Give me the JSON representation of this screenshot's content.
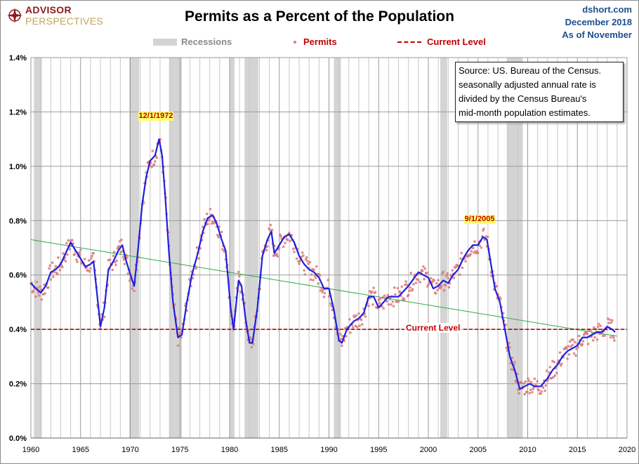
{
  "header": {
    "logo_line1": "ADVISOR",
    "logo_line2": "PERSPECTIVES",
    "title": "Permits as a Percent of the Population",
    "site": "dshort.com",
    "date": "December 2018",
    "as_of": "As of November"
  },
  "legend": {
    "recessions": "Recessions",
    "permits": "Permits",
    "current": "Current Level"
  },
  "source_note": [
    "Source: US. Bureau of the Census.",
    "seasonally adjusted annual rate is",
    "divided by the Census Bureau's",
    "mid-month  population estimates."
  ],
  "colors": {
    "line": "#1f1fe0",
    "scatter": "#d9797a",
    "current": "#c00000",
    "trend": "#2eaa4a",
    "recession": "#d4d4d4"
  },
  "chart_data": {
    "type": "line",
    "title": "Permits as a Percent of the Population",
    "xlim": [
      1960,
      2020
    ],
    "ylim": [
      0,
      1.4
    ],
    "x_ticks": [
      "1960",
      "1965",
      "1970",
      "1975",
      "1980",
      "1985",
      "1990",
      "1995",
      "2000",
      "2005",
      "2010",
      "2015",
      "2020"
    ],
    "y_ticks": [
      "0.0%",
      "0.2%",
      "0.4%",
      "0.6%",
      "0.8%",
      "1.0%",
      "1.2%",
      "1.4%"
    ],
    "y_tick_values": [
      0,
      0.2,
      0.4,
      0.6,
      0.8,
      1.0,
      1.2,
      1.4
    ],
    "grid": true,
    "recessions": [
      [
        1960.3,
        1961.1
      ],
      [
        1969.9,
        1970.9
      ],
      [
        1973.9,
        1975.2
      ],
      [
        1980.0,
        1980.5
      ],
      [
        1981.5,
        1982.9
      ],
      [
        1990.5,
        1991.2
      ],
      [
        2001.2,
        2001.9
      ],
      [
        2007.9,
        2009.5
      ]
    ],
    "current_level": 0.4,
    "current_label": "Current Level",
    "trend": {
      "x": [
        1960,
        2019
      ],
      "y": [
        0.73,
        0.375
      ]
    },
    "annotations": [
      {
        "label": "12/1/1972",
        "x": 1972.9,
        "y": 1.18
      },
      {
        "label": "9/1/2005",
        "x": 2005.7,
        "y": 0.8
      }
    ],
    "moving_average": [
      [
        1960.0,
        0.57
      ],
      [
        1960.5,
        0.55
      ],
      [
        1961.0,
        0.535
      ],
      [
        1961.5,
        0.56
      ],
      [
        1962,
        0.61
      ],
      [
        1962.5,
        0.62
      ],
      [
        1963,
        0.64
      ],
      [
        1963.5,
        0.68
      ],
      [
        1964,
        0.72
      ],
      [
        1964.5,
        0.69
      ],
      [
        1965,
        0.66
      ],
      [
        1965.5,
        0.63
      ],
      [
        1966,
        0.64
      ],
      [
        1966.3,
        0.65
      ],
      [
        1966.6,
        0.55
      ],
      [
        1967,
        0.41
      ],
      [
        1967.4,
        0.48
      ],
      [
        1967.8,
        0.62
      ],
      [
        1968.3,
        0.65
      ],
      [
        1968.8,
        0.69
      ],
      [
        1969.2,
        0.71
      ],
      [
        1969.6,
        0.65
      ],
      [
        1970.2,
        0.58
      ],
      [
        1970.4,
        0.56
      ],
      [
        1970.8,
        0.7
      ],
      [
        1971.2,
        0.86
      ],
      [
        1971.6,
        0.96
      ],
      [
        1972,
        1.02
      ],
      [
        1972.5,
        1.04
      ],
      [
        1972.9,
        1.1
      ],
      [
        1973.2,
        1.04
      ],
      [
        1973.5,
        0.9
      ],
      [
        1973.9,
        0.68
      ],
      [
        1974.3,
        0.5
      ],
      [
        1974.8,
        0.37
      ],
      [
        1975.2,
        0.38
      ],
      [
        1975.7,
        0.5
      ],
      [
        1976.2,
        0.6
      ],
      [
        1976.8,
        0.68
      ],
      [
        1977.3,
        0.76
      ],
      [
        1977.8,
        0.81
      ],
      [
        1978.3,
        0.82
      ],
      [
        1978.7,
        0.79
      ],
      [
        1979.2,
        0.73
      ],
      [
        1979.6,
        0.69
      ],
      [
        1980.1,
        0.48
      ],
      [
        1980.4,
        0.4
      ],
      [
        1980.9,
        0.58
      ],
      [
        1981.2,
        0.56
      ],
      [
        1981.6,
        0.44
      ],
      [
        1982.0,
        0.35
      ],
      [
        1982.3,
        0.35
      ],
      [
        1982.8,
        0.48
      ],
      [
        1983.3,
        0.67
      ],
      [
        1983.8,
        0.73
      ],
      [
        1984.2,
        0.76
      ],
      [
        1984.5,
        0.68
      ],
      [
        1985,
        0.71
      ],
      [
        1985.5,
        0.74
      ],
      [
        1986,
        0.75
      ],
      [
        1986.5,
        0.72
      ],
      [
        1987,
        0.67
      ],
      [
        1987.5,
        0.64
      ],
      [
        1988,
        0.62
      ],
      [
        1988.5,
        0.61
      ],
      [
        1989,
        0.59
      ],
      [
        1989.5,
        0.55
      ],
      [
        1990,
        0.55
      ],
      [
        1990.5,
        0.47
      ],
      [
        1991,
        0.36
      ],
      [
        1991.3,
        0.35
      ],
      [
        1991.8,
        0.4
      ],
      [
        1992.5,
        0.43
      ],
      [
        1993,
        0.44
      ],
      [
        1993.5,
        0.46
      ],
      [
        1994,
        0.52
      ],
      [
        1994.5,
        0.52
      ],
      [
        1995,
        0.48
      ],
      [
        1995.5,
        0.5
      ],
      [
        1996,
        0.52
      ],
      [
        1997,
        0.52
      ],
      [
        1998,
        0.56
      ],
      [
        1999,
        0.61
      ],
      [
        1999.5,
        0.6
      ],
      [
        2000,
        0.59
      ],
      [
        2000.5,
        0.55
      ],
      [
        2001,
        0.56
      ],
      [
        2001.5,
        0.58
      ],
      [
        2002,
        0.57
      ],
      [
        2002.5,
        0.6
      ],
      [
        2003,
        0.62
      ],
      [
        2003.5,
        0.66
      ],
      [
        2004,
        0.69
      ],
      [
        2004.5,
        0.71
      ],
      [
        2005,
        0.71
      ],
      [
        2005.5,
        0.74
      ],
      [
        2005.9,
        0.73
      ],
      [
        2006.3,
        0.64
      ],
      [
        2006.7,
        0.55
      ],
      [
        2007.2,
        0.5
      ],
      [
        2007.7,
        0.4
      ],
      [
        2008.2,
        0.3
      ],
      [
        2008.7,
        0.25
      ],
      [
        2009.2,
        0.18
      ],
      [
        2009.7,
        0.19
      ],
      [
        2010.2,
        0.2
      ],
      [
        2010.7,
        0.19
      ],
      [
        2011.3,
        0.19
      ],
      [
        2012,
        0.22
      ],
      [
        2012.5,
        0.25
      ],
      [
        2013,
        0.27
      ],
      [
        2013.5,
        0.3
      ],
      [
        2014,
        0.32
      ],
      [
        2014.5,
        0.33
      ],
      [
        2015,
        0.34
      ],
      [
        2015.5,
        0.37
      ],
      [
        2016,
        0.37
      ],
      [
        2016.5,
        0.38
      ],
      [
        2017,
        0.39
      ],
      [
        2017.5,
        0.39
      ],
      [
        2018,
        0.41
      ],
      [
        2018.5,
        0.4
      ],
      [
        2018.8,
        0.39
      ]
    ]
  }
}
